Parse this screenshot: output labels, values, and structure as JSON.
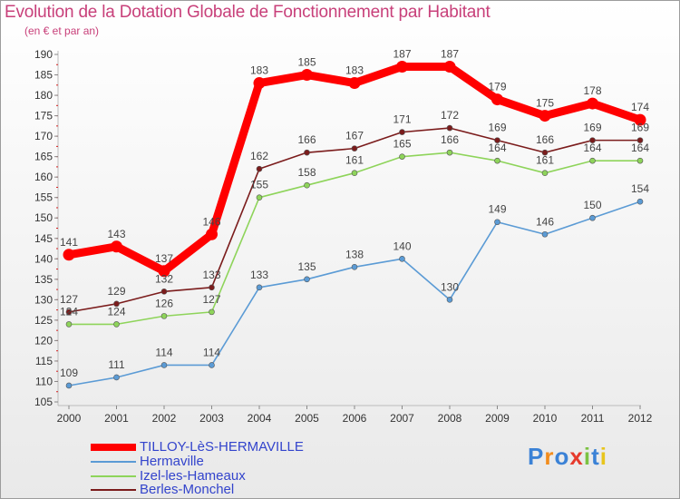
{
  "chart_data": {
    "type": "line",
    "title": "Evolution de la Dotation Globale de Fonctionnement par Habitant",
    "subtitle": "(en € et par an)",
    "xlabel": "",
    "ylabel": "",
    "x": [
      "2000",
      "2001",
      "2002",
      "2003",
      "2004",
      "2005",
      "2006",
      "2007",
      "2008",
      "2009",
      "2010",
      "2011",
      "2012"
    ],
    "ylim": [
      105,
      190
    ],
    "yticks": [
      105,
      110,
      115,
      120,
      125,
      130,
      135,
      140,
      145,
      150,
      155,
      160,
      165,
      170,
      175,
      180,
      185,
      190
    ],
    "grid": false,
    "legend_position": "bottom",
    "series": [
      {
        "name": "TILLOY-LèS-HERMAVILLE",
        "color": "#ff0000",
        "values": [
          141,
          143,
          137,
          146,
          183,
          185,
          183,
          187,
          187,
          179,
          175,
          178,
          174
        ]
      },
      {
        "name": "Hermaville",
        "color": "#5b9bd5",
        "values": [
          109,
          111,
          114,
          114,
          133,
          135,
          138,
          140,
          130,
          149,
          146,
          150,
          154
        ]
      },
      {
        "name": "Izel-les-Hameaux",
        "color": "#8ed45a",
        "values": [
          124,
          124,
          126,
          127,
          155,
          158,
          161,
          165,
          166,
          164,
          161,
          164,
          164
        ]
      },
      {
        "name": "Berles-Monchel",
        "color": "#7b1c1c",
        "values": [
          127,
          129,
          132,
          133,
          162,
          166,
          167,
          171,
          172,
          169,
          166,
          169,
          169
        ]
      }
    ]
  },
  "brand": "Proxiti"
}
